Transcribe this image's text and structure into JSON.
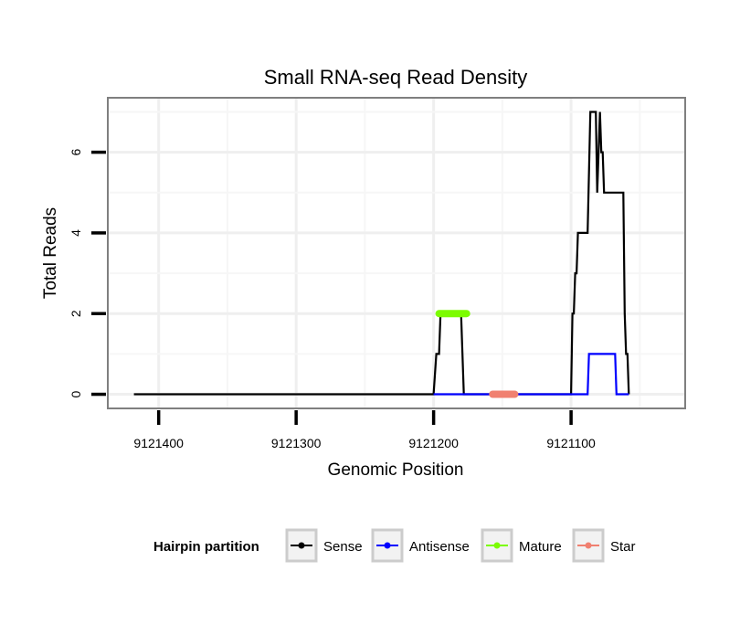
{
  "chart_data": {
    "type": "line",
    "title": "Small RNA-seq Read Density",
    "xlabel": "Genomic Position",
    "ylabel": "Total Reads",
    "x_reversed": true,
    "xlim": [
      9121437,
      9121017
    ],
    "ylim": [
      -0.35,
      7.35
    ],
    "x_ticks": [
      9121400,
      9121300,
      9121200,
      9121100
    ],
    "y_ticks": [
      0,
      2,
      4,
      6
    ],
    "grid": true,
    "legend": {
      "title": "Hairpin partition",
      "position": "bottom",
      "entries": [
        "Sense",
        "Antisense",
        "Mature",
        "Star"
      ]
    },
    "series": [
      {
        "name": "Sense",
        "color": "#000000",
        "points": [
          [
            9121418,
            0
          ],
          [
            9121200,
            0
          ],
          [
            9121198,
            1
          ],
          [
            9121196,
            1
          ],
          [
            9121195,
            2
          ],
          [
            9121180,
            2
          ],
          [
            9121178,
            0
          ],
          [
            9121100,
            0
          ],
          [
            9121099,
            2
          ],
          [
            9121098,
            2
          ],
          [
            9121097,
            3
          ],
          [
            9121096,
            3
          ],
          [
            9121095,
            4
          ],
          [
            9121088,
            4
          ],
          [
            9121086,
            7
          ],
          [
            9121082,
            7
          ],
          [
            9121081,
            5
          ],
          [
            9121079,
            7
          ],
          [
            9121078,
            6
          ],
          [
            9121077,
            6
          ],
          [
            9121076,
            5
          ],
          [
            9121062,
            5
          ],
          [
            9121061,
            2
          ],
          [
            9121060,
            1
          ],
          [
            9121059,
            1
          ],
          [
            9121058,
            0
          ]
        ]
      },
      {
        "name": "Antisense",
        "color": "#0000ff",
        "points": [
          [
            9121200,
            0
          ],
          [
            9121088,
            0
          ],
          [
            9121087,
            1
          ],
          [
            9121068,
            1
          ],
          [
            9121067,
            0
          ],
          [
            9121058,
            0
          ]
        ]
      },
      {
        "name": "Mature",
        "color": "#7cfc00",
        "points": [
          [
            9121196,
            2
          ],
          [
            9121176,
            2
          ]
        ]
      },
      {
        "name": "Star",
        "color": "#f08070",
        "points": [
          [
            9121157,
            0
          ],
          [
            9121141,
            0
          ]
        ]
      }
    ]
  }
}
